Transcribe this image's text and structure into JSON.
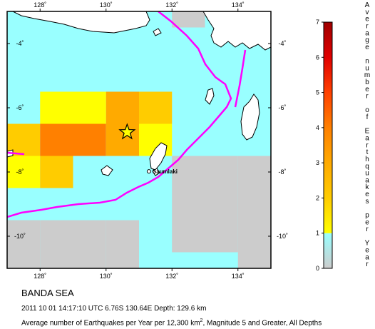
{
  "caption": {
    "region": "BANDA SEA",
    "event": "2011 10 01 14:17:10 UTC 6.76S 130.64E Depth: 129.6 km",
    "description_pre": "Average number of Earthquakes per Year per 12,300 km",
    "description_sup": "2",
    "description_post": ", Magnitude 5 and Greater, All Depths"
  },
  "map": {
    "lon_range": [
      127,
      135
    ],
    "lat_range": [
      -11,
      -3
    ],
    "lon_ticks": [
      {
        "value": 128,
        "label": "128˚"
      },
      {
        "value": 130,
        "label": "130˚"
      },
      {
        "value": 132,
        "label": "132˚"
      },
      {
        "value": 134,
        "label": "134˚"
      }
    ],
    "lat_ticks": [
      {
        "value": -4,
        "label": "-4˚"
      },
      {
        "value": -6,
        "label": "-6˚"
      },
      {
        "value": -8,
        "label": "-8˚"
      },
      {
        "value": -10,
        "label": "-10˚"
      }
    ],
    "epicenter": {
      "lon": 130.64,
      "lat": -6.76
    },
    "city": {
      "name": "Saumlaki",
      "lon": 131.3,
      "lat": -7.98
    },
    "colors": {
      "ocean_grid": "#99ffff",
      "land": "#ffffff",
      "coastline": "#000000",
      "plate_boundary": "#ff00ff",
      "star": "#ffff00"
    },
    "grid_cells": [
      {
        "lon": 128.5,
        "lat": -6.0,
        "value": 1.2
      },
      {
        "lon": 129.5,
        "lat": -6.0,
        "value": 1.2
      },
      {
        "lon": 130.5,
        "lat": -6.0,
        "value": 3.6
      },
      {
        "lon": 131.5,
        "lat": -6.0,
        "value": 2.7
      },
      {
        "lon": 127.5,
        "lat": -7.0,
        "value": 2.7
      },
      {
        "lon": 128.5,
        "lat": -7.0,
        "value": 4.2
      },
      {
        "lon": 129.5,
        "lat": -7.0,
        "value": 4.2
      },
      {
        "lon": 130.5,
        "lat": -7.0,
        "value": 3.6
      },
      {
        "lon": 131.5,
        "lat": -7.0,
        "value": 1.2
      },
      {
        "lon": 127.5,
        "lat": -8.0,
        "value": 1.3
      },
      {
        "lon": 128.5,
        "lat": -8.0,
        "value": 2.6
      },
      {
        "lon": 131.5,
        "lat": -8.0,
        "value": 0.4
      },
      {
        "lon": 132.5,
        "lat": -8.0,
        "value": 0.05
      },
      {
        "lon": 133.5,
        "lat": -8.0,
        "value": 0.05
      },
      {
        "lon": 134.5,
        "lat": -8.0,
        "value": 0.05
      },
      {
        "lon": 132.5,
        "lat": -9.0,
        "value": 0.05
      },
      {
        "lon": 133.5,
        "lat": -9.0,
        "value": 0.05
      },
      {
        "lon": 134.5,
        "lat": -9.0,
        "value": 0.05
      },
      {
        "lon": 127.5,
        "lat": -10.0,
        "value": 0.05
      },
      {
        "lon": 128.5,
        "lat": -10.0,
        "value": 0.05
      },
      {
        "lon": 129.5,
        "lat": -10.0,
        "value": 0.05
      },
      {
        "lon": 130.5,
        "lat": -10.0,
        "value": 0.05
      },
      {
        "lon": 132.5,
        "lat": -10.0,
        "value": 0.05
      },
      {
        "lon": 133.5,
        "lat": -10.0,
        "value": 0.05
      },
      {
        "lon": 134.5,
        "lat": -10.0,
        "value": 0.05
      },
      {
        "lon": 127.5,
        "lat": -11.0,
        "value": 0.05
      },
      {
        "lon": 128.5,
        "lat": -11.0,
        "value": 0.05
      },
      {
        "lon": 129.5,
        "lat": -11.0,
        "value": 0.05
      },
      {
        "lon": 130.5,
        "lat": -11.0,
        "value": 0.05
      },
      {
        "lon": 134.5,
        "lat": -11.0,
        "value": 0.05
      },
      {
        "lon": 132.5,
        "lat": -3.0,
        "value": 0.05
      }
    ]
  },
  "colorbar": {
    "title_words": [
      "Average",
      "number",
      "of",
      "Earthquakes",
      "per",
      "Year"
    ],
    "ticks": [
      "0",
      "1",
      "2",
      "3",
      "4",
      "5",
      "6",
      "7"
    ],
    "stops": [
      {
        "value": 0,
        "color": "#cccccc"
      },
      {
        "value": 1,
        "color": "#99ffff"
      },
      {
        "value": 1,
        "color": "#ffff00"
      },
      {
        "value": 2,
        "color": "#ffcc00"
      },
      {
        "value": 3,
        "color": "#ffaa00"
      },
      {
        "value": 4,
        "color": "#ff8000"
      },
      {
        "value": 5,
        "color": "#ff4000"
      },
      {
        "value": 6,
        "color": "#e00000"
      },
      {
        "value": 7,
        "color": "#a00000"
      }
    ]
  }
}
